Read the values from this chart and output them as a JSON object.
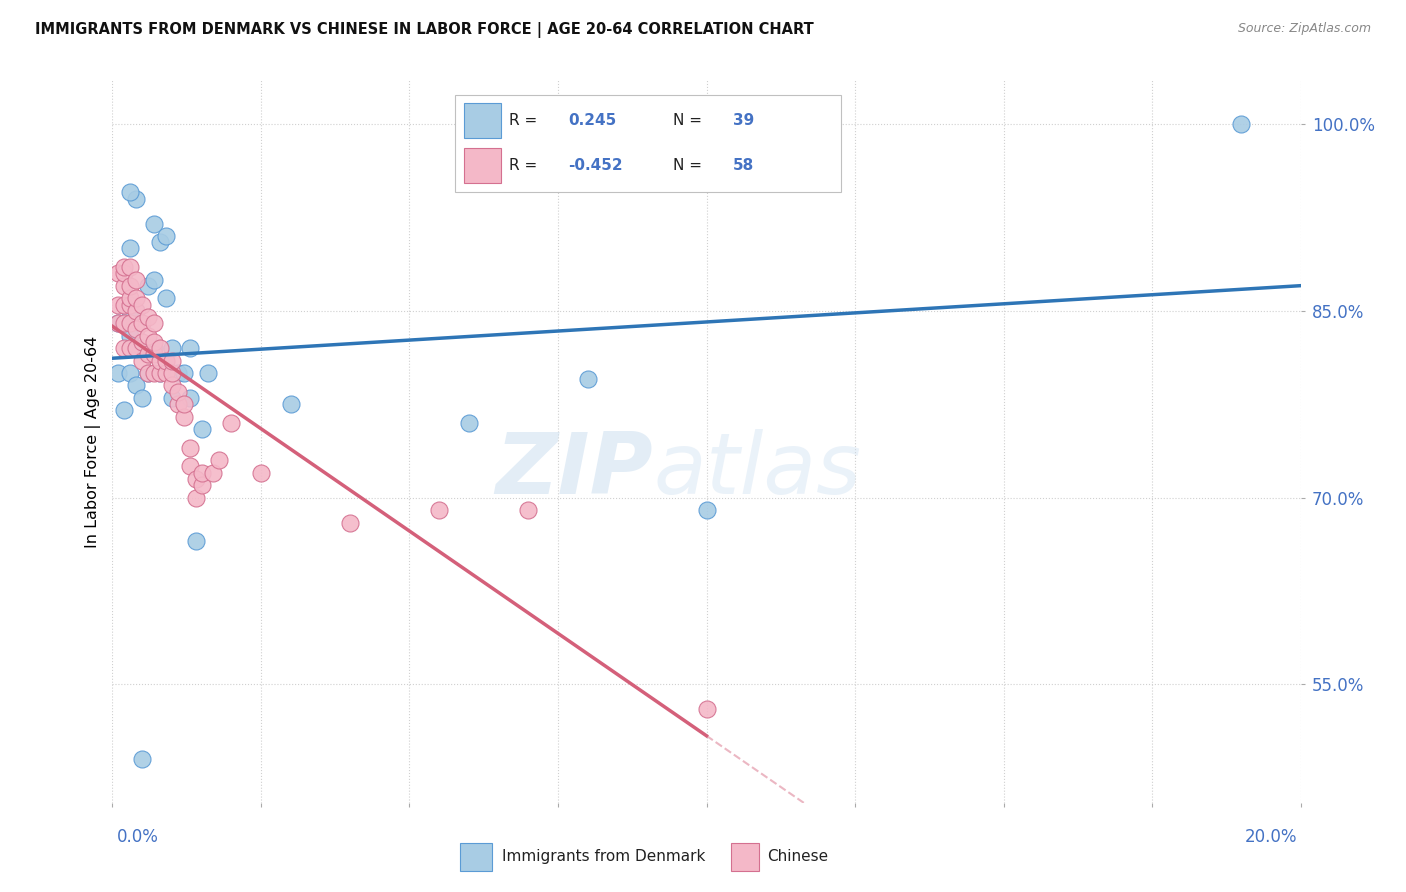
{
  "title": "IMMIGRANTS FROM DENMARK VS CHINESE IN LABOR FORCE | AGE 20-64 CORRELATION CHART",
  "source": "Source: ZipAtlas.com",
  "ylabel": "In Labor Force | Age 20-64",
  "legend_denmark": "Immigrants from Denmark",
  "legend_chinese": "Chinese",
  "R_denmark": "0.245",
  "N_denmark": "39",
  "R_chinese": "-0.452",
  "N_chinese": "58",
  "blue_fill": "#a8cce4",
  "blue_edge": "#5b9bd5",
  "blue_line": "#2e75b6",
  "pink_fill": "#f4b8c8",
  "pink_edge": "#d47090",
  "pink_line": "#d4607a",
  "text_blue": "#4472c4",
  "grid_color": "#d0d0d0",
  "xlim": [
    0.0,
    0.2
  ],
  "ylim": [
    0.455,
    1.035
  ],
  "yticks": [
    0.55,
    0.7,
    0.85,
    1.0
  ],
  "ytick_labels": [
    "55.0%",
    "70.0%",
    "85.0%",
    "100.0%"
  ],
  "denmark_x": [
    0.001,
    0.001,
    0.002,
    0.002,
    0.003,
    0.003,
    0.003,
    0.003,
    0.004,
    0.004,
    0.004,
    0.005,
    0.005,
    0.006,
    0.006,
    0.007,
    0.007,
    0.007,
    0.008,
    0.008,
    0.009,
    0.009,
    0.01,
    0.01,
    0.011,
    0.012,
    0.013,
    0.013,
    0.014,
    0.015,
    0.016,
    0.004,
    0.003,
    0.06,
    0.08,
    0.1,
    0.03,
    0.19,
    0.005
  ],
  "denmark_y": [
    0.8,
    0.84,
    0.77,
    0.84,
    0.8,
    0.83,
    0.85,
    0.9,
    0.79,
    0.82,
    0.85,
    0.78,
    0.82,
    0.8,
    0.87,
    0.82,
    0.875,
    0.92,
    0.8,
    0.905,
    0.86,
    0.91,
    0.78,
    0.82,
    0.8,
    0.8,
    0.78,
    0.82,
    0.665,
    0.755,
    0.8,
    0.94,
    0.945,
    0.76,
    0.795,
    0.69,
    0.775,
    1.0,
    0.49
  ],
  "chinese_x": [
    0.001,
    0.001,
    0.001,
    0.002,
    0.002,
    0.002,
    0.002,
    0.002,
    0.002,
    0.003,
    0.003,
    0.003,
    0.003,
    0.003,
    0.003,
    0.004,
    0.004,
    0.004,
    0.004,
    0.004,
    0.005,
    0.005,
    0.005,
    0.005,
    0.006,
    0.006,
    0.006,
    0.006,
    0.007,
    0.007,
    0.007,
    0.007,
    0.008,
    0.008,
    0.008,
    0.009,
    0.009,
    0.01,
    0.01,
    0.01,
    0.011,
    0.011,
    0.012,
    0.012,
    0.013,
    0.013,
    0.014,
    0.014,
    0.015,
    0.015,
    0.017,
    0.018,
    0.02,
    0.025,
    0.04,
    0.055,
    0.07,
    0.1
  ],
  "chinese_y": [
    0.84,
    0.855,
    0.88,
    0.82,
    0.84,
    0.855,
    0.87,
    0.88,
    0.885,
    0.82,
    0.84,
    0.855,
    0.86,
    0.87,
    0.885,
    0.82,
    0.835,
    0.85,
    0.86,
    0.875,
    0.81,
    0.825,
    0.84,
    0.855,
    0.8,
    0.815,
    0.83,
    0.845,
    0.8,
    0.815,
    0.825,
    0.84,
    0.8,
    0.81,
    0.82,
    0.8,
    0.81,
    0.79,
    0.8,
    0.81,
    0.775,
    0.785,
    0.765,
    0.775,
    0.725,
    0.74,
    0.7,
    0.715,
    0.71,
    0.72,
    0.72,
    0.73,
    0.76,
    0.72,
    0.68,
    0.69,
    0.69,
    0.53
  ]
}
